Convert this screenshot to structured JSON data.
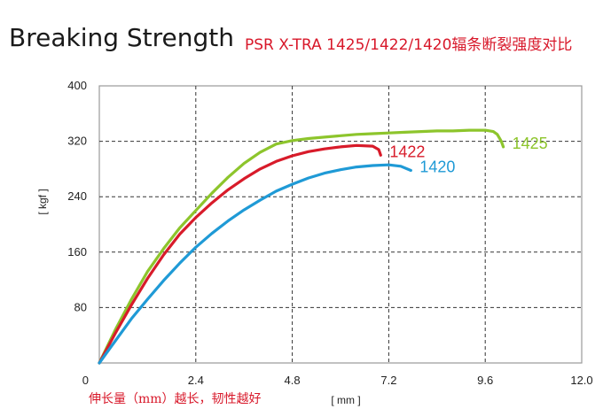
{
  "chart_data": {
    "type": "line",
    "title": "Breaking Strength",
    "subtitle": "PSR X-TRA 1425/1422/1420辐条断裂强度对比",
    "xlabel": "[ mm ]",
    "ylabel": "[ kgf ]",
    "note": "伸长量（mm）越长，韧性越好",
    "xlim": [
      0,
      12.0
    ],
    "ylim": [
      0,
      400
    ],
    "xticks": [
      "0",
      "2.4",
      "4.8",
      "7.2",
      "9.6",
      "12.0"
    ],
    "yticks": [
      "80",
      "160",
      "240",
      "320",
      "400"
    ],
    "grid": true,
    "series": [
      {
        "name": "1425",
        "color": "#8dc52c",
        "x": [
          0,
          0.4,
          0.8,
          1.2,
          1.6,
          2.0,
          2.4,
          2.8,
          3.2,
          3.6,
          4.0,
          4.4,
          4.8,
          5.2,
          5.6,
          6.0,
          6.4,
          6.8,
          7.2,
          7.6,
          8.0,
          8.4,
          8.8,
          9.2,
          9.6,
          9.8,
          9.9,
          10.0,
          10.05
        ],
        "y": [
          0,
          48,
          92,
          132,
          165,
          195,
          220,
          245,
          268,
          288,
          304,
          316,
          321,
          324,
          326,
          328,
          330,
          331,
          332,
          333,
          334,
          335,
          335,
          336,
          336,
          334,
          330,
          320,
          312
        ]
      },
      {
        "name": "1422",
        "color": "#d81b2a",
        "x": [
          0,
          0.4,
          0.8,
          1.2,
          1.6,
          2.0,
          2.4,
          2.8,
          3.2,
          3.6,
          4.0,
          4.4,
          4.8,
          5.2,
          5.6,
          6.0,
          6.4,
          6.8,
          6.95,
          7.0
        ],
        "y": [
          0,
          43,
          84,
          122,
          156,
          186,
          210,
          231,
          250,
          266,
          280,
          291,
          299,
          305,
          309,
          312,
          314,
          313,
          308,
          300
        ]
      },
      {
        "name": "1420",
        "color": "#1f9ad6",
        "x": [
          0,
          0.4,
          0.8,
          1.2,
          1.6,
          2.0,
          2.4,
          2.8,
          3.2,
          3.6,
          4.0,
          4.4,
          4.8,
          5.2,
          5.6,
          6.0,
          6.4,
          6.8,
          7.2,
          7.5,
          7.75
        ],
        "y": [
          0,
          32,
          64,
          92,
          119,
          144,
          167,
          187,
          205,
          221,
          235,
          248,
          258,
          267,
          274,
          279,
          283,
          285,
          286,
          284,
          278
        ]
      }
    ]
  }
}
